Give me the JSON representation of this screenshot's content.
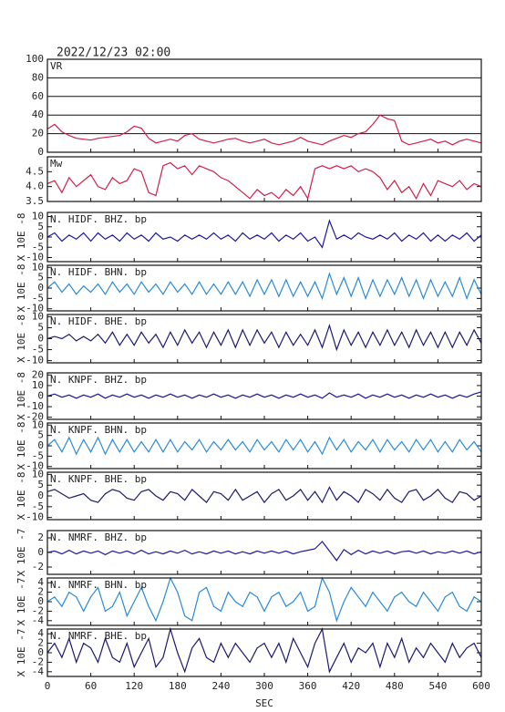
{
  "chart_data": {
    "type": "line",
    "title": "2022/12/23 02:00",
    "xlabel": "SEC",
    "xlim": [
      0,
      600
    ],
    "xticks": [
      0,
      60,
      120,
      180,
      240,
      300,
      360,
      420,
      480,
      540,
      600
    ],
    "x": [
      0,
      10,
      20,
      30,
      40,
      50,
      60,
      70,
      80,
      90,
      100,
      110,
      120,
      130,
      140,
      150,
      160,
      170,
      180,
      190,
      200,
      210,
      220,
      230,
      240,
      250,
      260,
      270,
      280,
      290,
      300,
      310,
      320,
      330,
      340,
      350,
      360,
      370,
      380,
      390,
      400,
      410,
      420,
      430,
      440,
      450,
      460,
      470,
      480,
      490,
      500,
      510,
      520,
      530,
      540,
      550,
      560,
      570,
      580,
      590,
      600
    ],
    "series": [
      {
        "name": "VR",
        "color": "#d0204a",
        "grid": true,
        "ylim": [
          0,
          100
        ],
        "yticks": [
          0,
          20,
          40,
          60,
          80,
          100
        ],
        "values": [
          25,
          30,
          22,
          18,
          15,
          14,
          13,
          15,
          16,
          17,
          18,
          22,
          28,
          26,
          15,
          10,
          12,
          14,
          12,
          18,
          20,
          14,
          12,
          10,
          12,
          14,
          15,
          12,
          10,
          12,
          14,
          10,
          8,
          10,
          12,
          16,
          12,
          10,
          8,
          12,
          15,
          18,
          16,
          20,
          22,
          30,
          40,
          36,
          34,
          12,
          8,
          10,
          12,
          14,
          10,
          12,
          8,
          12,
          14,
          12,
          10
        ]
      },
      {
        "name": "Mw",
        "color": "#d0204a",
        "grid": false,
        "ylim": [
          3.5,
          5.0
        ],
        "yticks": [
          3.5,
          {
            "value": 4,
            "label": "4.0"
          },
          4.5
        ],
        "values": [
          4.1,
          4.2,
          3.8,
          4.3,
          4.0,
          4.2,
          4.4,
          4.0,
          3.9,
          4.3,
          4.1,
          4.2,
          4.6,
          4.5,
          3.8,
          3.7,
          4.7,
          4.8,
          4.6,
          4.7,
          4.4,
          4.7,
          4.6,
          4.5,
          4.3,
          4.2,
          4.0,
          3.8,
          3.6,
          3.9,
          3.7,
          3.8,
          3.6,
          3.9,
          3.7,
          4.0,
          3.6,
          4.6,
          4.7,
          4.6,
          4.7,
          4.6,
          4.7,
          4.5,
          4.6,
          4.5,
          4.3,
          3.9,
          4.2,
          3.8,
          4.0,
          3.6,
          4.1,
          3.7,
          4.2,
          4.1,
          4.0,
          4.2,
          3.9,
          4.1,
          4.0
        ]
      },
      {
        "name": "N. HIDF. BHZ. bp",
        "unit": "X 10E -8",
        "color": "#1a1a9a",
        "grid": false,
        "ylim": [
          -12,
          12
        ],
        "yticks": [
          -10,
          -5,
          0,
          5,
          10
        ],
        "values": [
          0,
          2,
          -2,
          1,
          -1,
          2,
          -2,
          2,
          -1,
          1,
          -2,
          2,
          -1,
          1,
          -2,
          2,
          -1,
          0,
          -2,
          1,
          -1,
          1,
          -1,
          2,
          -1,
          1,
          -2,
          2,
          -1,
          1,
          -1,
          2,
          -2,
          1,
          -1,
          2,
          -2,
          0,
          -5,
          8,
          -1,
          1,
          -1,
          2,
          0,
          -1,
          1,
          -1,
          2,
          -2,
          1,
          -1,
          2,
          -2,
          1,
          -2,
          1,
          -1,
          2,
          -2,
          1
        ]
      },
      {
        "name": "N. HIDF. BHN. bp",
        "unit": "X 10E -8",
        "color": "#2a8ad8",
        "grid": false,
        "ylim": [
          -11,
          11
        ],
        "yticks": [
          -10,
          -5,
          0,
          5,
          10
        ],
        "values": [
          0,
          3,
          -2,
          2,
          -3,
          1,
          -2,
          2,
          -3,
          3,
          -2,
          2,
          -3,
          3,
          -2,
          2,
          -3,
          3,
          -2,
          2,
          -3,
          3,
          -3,
          2,
          -3,
          3,
          -3,
          3,
          -4,
          4,
          -3,
          4,
          -4,
          4,
          -4,
          3,
          -4,
          3,
          -5,
          7,
          -3,
          5,
          -4,
          5,
          -5,
          4,
          -4,
          4,
          -3,
          5,
          -4,
          4,
          -5,
          4,
          -4,
          3,
          -4,
          5,
          -5,
          4,
          -3
        ]
      },
      {
        "name": "N. HIDF. BHE. bp",
        "unit": "X 10E -8",
        "color": "#1a1a70",
        "grid": false,
        "ylim": [
          -11,
          11
        ],
        "yticks": [
          -10,
          -5,
          0,
          5,
          10
        ],
        "values": [
          0,
          1,
          0,
          2,
          -1,
          1,
          -1,
          2,
          -2,
          3,
          -3,
          2,
          -3,
          3,
          -2,
          2,
          -4,
          3,
          -3,
          4,
          -2,
          3,
          -4,
          3,
          -3,
          4,
          -4,
          4,
          -3,
          4,
          -2,
          3,
          -4,
          3,
          -3,
          2,
          -3,
          4,
          -4,
          6,
          -5,
          4,
          -3,
          3,
          -4,
          3,
          -3,
          4,
          -3,
          3,
          -4,
          4,
          -3,
          3,
          -4,
          3,
          -4,
          3,
          -3,
          4,
          -2
        ]
      },
      {
        "name": "N. KNPF. BHZ. bp",
        "unit": "X 10E -8",
        "color": "#1a1a9a",
        "grid": false,
        "ylim": [
          -22,
          22
        ],
        "yticks": [
          -20,
          -10,
          0,
          10,
          20
        ],
        "values": [
          0,
          2,
          -1,
          1,
          -2,
          1,
          -1,
          2,
          -2,
          1,
          -1,
          2,
          -1,
          1,
          -2,
          1,
          -1,
          2,
          -1,
          1,
          -2,
          1,
          -1,
          2,
          -1,
          1,
          -2,
          1,
          -1,
          2,
          -1,
          1,
          -2,
          1,
          -1,
          2,
          -1,
          1,
          -2,
          3,
          -1,
          1,
          -1,
          2,
          -2,
          1,
          -1,
          2,
          -1,
          1,
          -2,
          1,
          -1,
          2,
          -1,
          1,
          -2,
          1,
          -1,
          2,
          4
        ]
      },
      {
        "name": "N. KNPF. BHN. bp",
        "unit": "X 10E -8",
        "color": "#2a8ad8",
        "grid": false,
        "ylim": [
          -11,
          11
        ],
        "yticks": [
          -10,
          -5,
          0,
          5,
          10
        ],
        "values": [
          0,
          3,
          -3,
          4,
          -4,
          3,
          -3,
          4,
          -4,
          3,
          -3,
          3,
          -3,
          2,
          -3,
          3,
          -3,
          3,
          -3,
          2,
          -2,
          3,
          -3,
          2,
          -2,
          3,
          -2,
          2,
          -3,
          3,
          -2,
          2,
          -3,
          3,
          -2,
          3,
          -3,
          2,
          -4,
          4,
          -2,
          3,
          -3,
          2,
          -2,
          3,
          -3,
          3,
          -2,
          2,
          -3,
          3,
          -2,
          3,
          -3,
          2,
          -3,
          3,
          -2,
          2,
          -3
        ]
      },
      {
        "name": "N. KNPF. BHE. bp",
        "unit": "X 10E -8",
        "color": "#1a1a70",
        "grid": false,
        "ylim": [
          -11,
          11
        ],
        "yticks": [
          -10,
          -5,
          0,
          5,
          10
        ],
        "values": [
          2,
          3,
          1,
          -1,
          0,
          1,
          -2,
          -3,
          1,
          3,
          2,
          -1,
          -2,
          2,
          3,
          0,
          -2,
          2,
          1,
          -2,
          3,
          0,
          -3,
          2,
          1,
          -2,
          3,
          -2,
          0,
          2,
          -3,
          1,
          3,
          -2,
          0,
          3,
          -2,
          2,
          -3,
          4,
          -2,
          2,
          0,
          -3,
          3,
          1,
          -2,
          3,
          -1,
          -3,
          2,
          3,
          -2,
          0,
          3,
          -1,
          -3,
          2,
          1,
          -2,
          0
        ]
      },
      {
        "name": "N. NMRF. BHZ. bp",
        "unit": "X 10E -7",
        "color": "#1a1a9a",
        "grid": false,
        "ylim": [
          -3,
          3
        ],
        "yticks": [
          -2,
          0,
          2
        ],
        "values": [
          0,
          0.2,
          -0.2,
          0.3,
          -0.2,
          0.2,
          -0.1,
          0.2,
          -0.3,
          0.2,
          -0.1,
          0.2,
          -0.2,
          0.3,
          -0.2,
          0.1,
          -0.2,
          0.2,
          -0.1,
          0.3,
          -0.2,
          0.1,
          -0.2,
          0.2,
          -0.1,
          0.2,
          -0.2,
          0.1,
          -0.2,
          0.2,
          -0.1,
          0.2,
          -0.1,
          0.2,
          -0.2,
          0.1,
          0.3,
          0.5,
          1.5,
          0.2,
          -1.1,
          0.4,
          -0.3,
          0.3,
          -0.2,
          0.2,
          -0.1,
          0.2,
          -0.2,
          0.1,
          0.2,
          -0.1,
          0.2,
          -0.2,
          0.1,
          -0.1,
          0.2,
          -0.1,
          0.2,
          -0.2,
          0.1
        ]
      },
      {
        "name": "N. NMRF. BHN. bp",
        "unit": "X 10E -7",
        "color": "#2a8ad8",
        "grid": false,
        "ylim": [
          -5,
          5
        ],
        "yticks": [
          -4,
          -2,
          0,
          2,
          4
        ],
        "values": [
          0,
          1,
          -1,
          2,
          1,
          -2,
          1,
          3,
          -2,
          -1,
          2,
          -3,
          0,
          3,
          -1,
          -4,
          0,
          5,
          2,
          -3,
          -4,
          2,
          3,
          -1,
          -2,
          2,
          0,
          -1,
          2,
          1,
          -2,
          1,
          2,
          -1,
          0,
          2,
          -2,
          -1,
          5,
          2,
          -4,
          0,
          3,
          1,
          -1,
          2,
          0,
          -2,
          1,
          2,
          0,
          -1,
          2,
          0,
          -2,
          1,
          2,
          -1,
          -2,
          1,
          0
        ]
      },
      {
        "name": "N. NMRF. BHE. bp",
        "unit": "X 10E -7",
        "color": "#1a1a70",
        "grid": false,
        "ylim": [
          -5,
          5
        ],
        "yticks": [
          -4,
          -2,
          0,
          2,
          4
        ],
        "values": [
          0,
          2,
          -1,
          3,
          -2,
          2,
          1,
          -2,
          3,
          -1,
          -2,
          2,
          -3,
          0,
          3,
          -3,
          -1,
          5,
          0,
          -4,
          1,
          3,
          -1,
          -2,
          2,
          -1,
          2,
          0,
          -2,
          1,
          2,
          -1,
          2,
          -2,
          3,
          0,
          -3,
          2,
          5,
          -4,
          -1,
          2,
          -2,
          1,
          0,
          2,
          -3,
          2,
          -1,
          3,
          -2,
          1,
          -1,
          2,
          0,
          -2,
          2,
          -1,
          1,
          2,
          -1
        ]
      }
    ]
  }
}
